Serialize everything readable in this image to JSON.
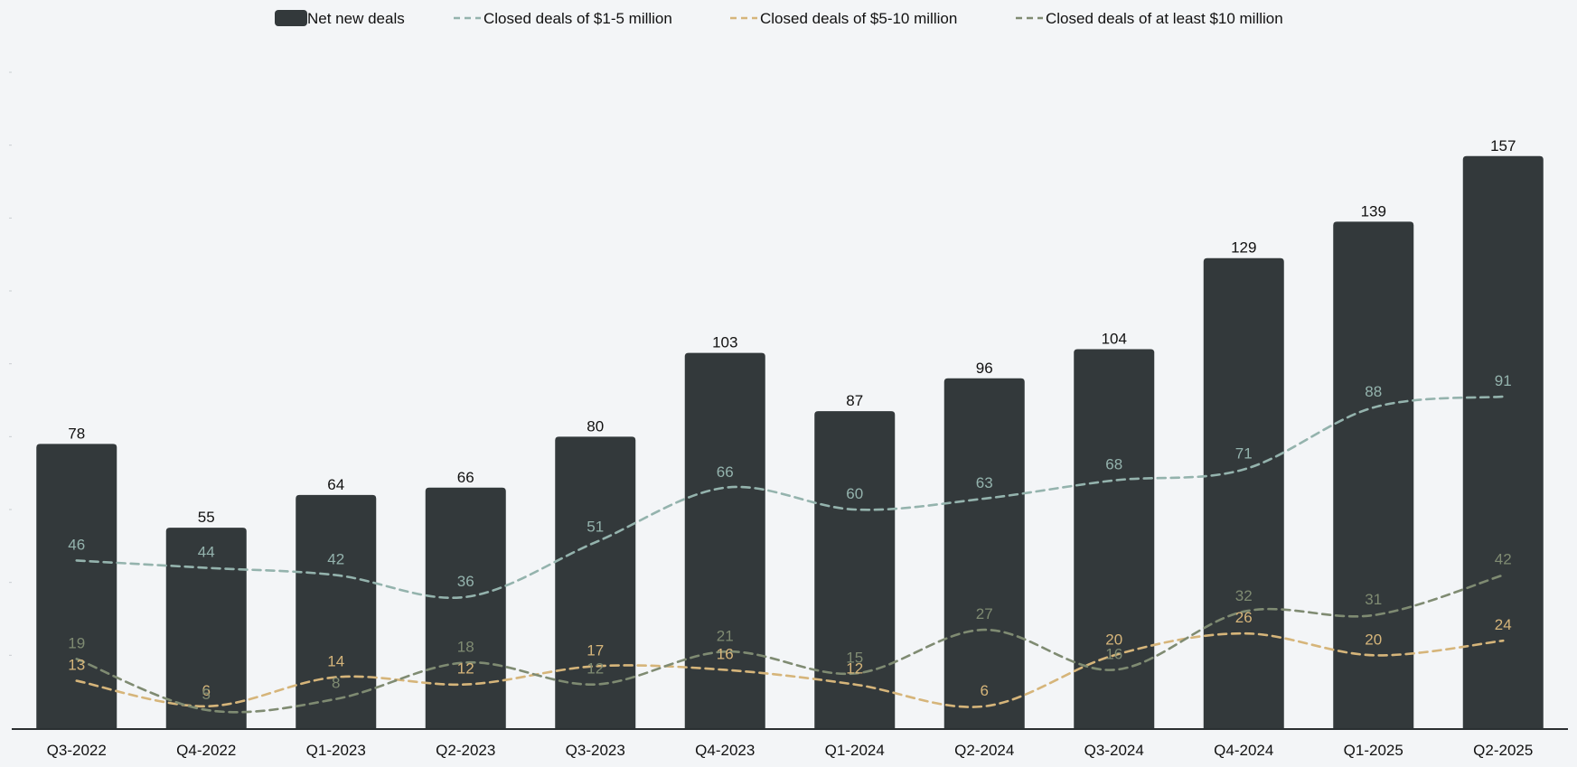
{
  "chart_data": {
    "type": "bar",
    "title": "",
    "xlabel": "",
    "ylabel": "",
    "ylim": [
      0,
      180
    ],
    "grid": false,
    "legend_position": "top",
    "categories": [
      "Q3-2022",
      "Q4-2022",
      "Q1-2023",
      "Q2-2023",
      "Q3-2023",
      "Q4-2023",
      "Q1-2024",
      "Q2-2024",
      "Q3-2024",
      "Q4-2024",
      "Q1-2025",
      "Q2-2025"
    ],
    "bar_series": {
      "name": "Net new deals",
      "color": "#33393b",
      "values": [
        78,
        55,
        64,
        66,
        80,
        103,
        87,
        96,
        104,
        129,
        139,
        157
      ]
    },
    "line_series": [
      {
        "name": "Closed deals of $1-5 million",
        "color": "#94b3ad",
        "style": "dashed",
        "values": [
          46,
          44,
          42,
          36,
          51,
          66,
          60,
          63,
          68,
          71,
          88,
          91
        ]
      },
      {
        "name": "Closed deals of $5-10 million",
        "color": "#d6b57a",
        "style": "dashed",
        "values": [
          13,
          6,
          14,
          12,
          17,
          16,
          12,
          6,
          20,
          26,
          20,
          24
        ]
      },
      {
        "name": "Closed deals of at least $10 million",
        "color": "#7f8b72",
        "style": "dashed",
        "values": [
          19,
          5,
          8,
          18,
          12,
          21,
          15,
          27,
          16,
          32,
          31,
          42
        ]
      }
    ]
  }
}
